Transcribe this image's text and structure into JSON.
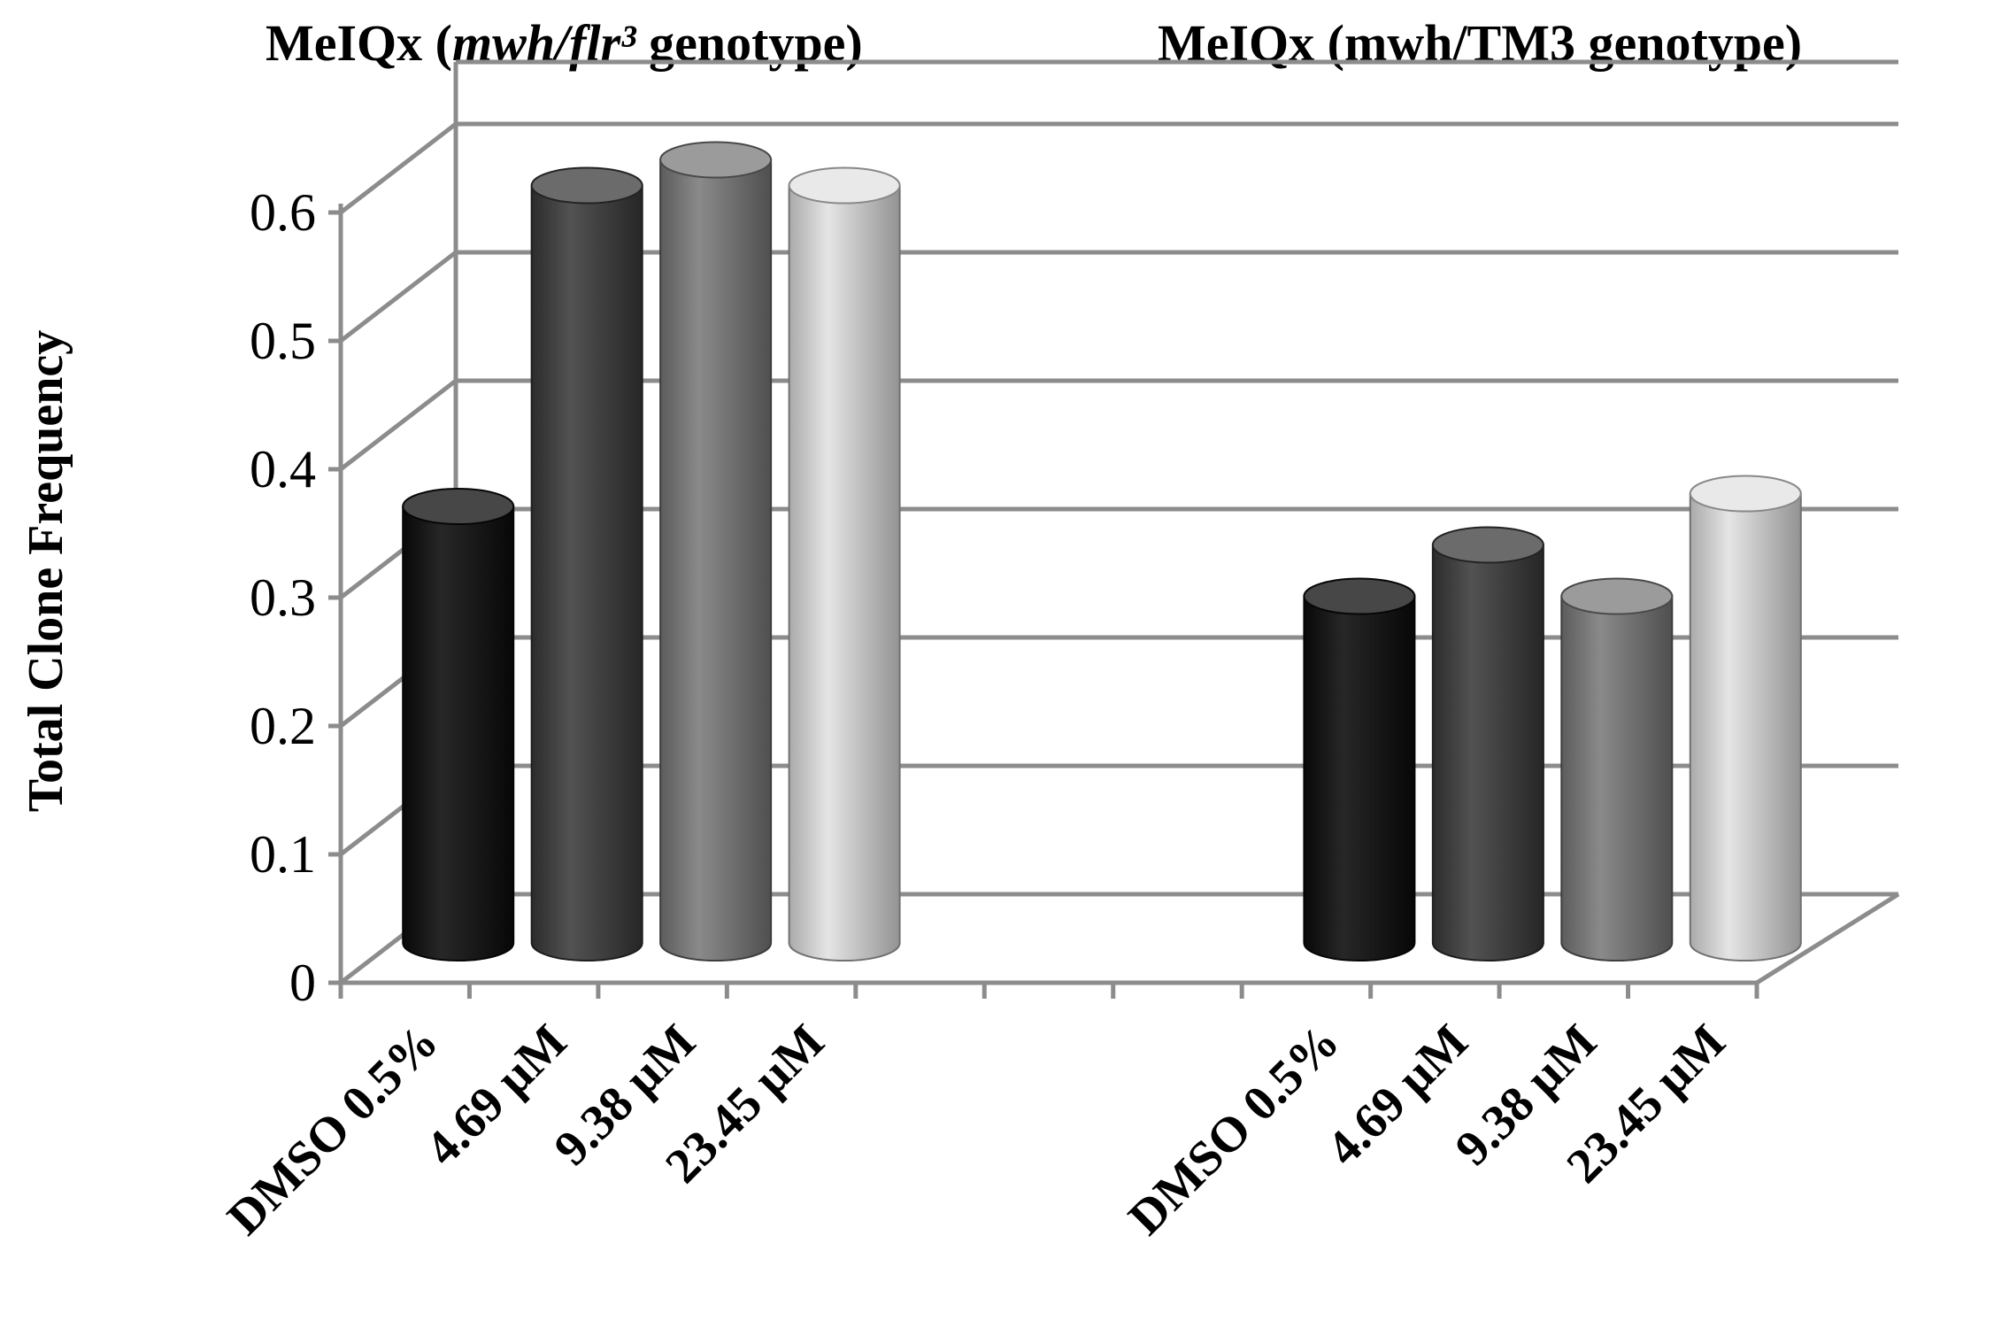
{
  "chart_data": {
    "type": "bar",
    "style": "3d-cylinder",
    "ylabel": "Total Clone Frequency",
    "ylim": [
      0,
      0.6
    ],
    "yticks": [
      "0",
      "0.1",
      "0.2",
      "0.3",
      "0.4",
      "0.5",
      "0.6"
    ],
    "grid": true,
    "groups": [
      {
        "title": {
          "prefix": "MeIQx  (",
          "italic": "mwh/flr³",
          "suffix": " genotype)"
        },
        "categories": [
          "DMSO 0.5%",
          "4.69 µM",
          "9.38 µM",
          "23.45 µM"
        ],
        "values": [
          0.34,
          0.59,
          0.61,
          0.59
        ]
      },
      {
        "title": {
          "prefix": "MeIQx (mwh/TM3 genotype)",
          "italic": "",
          "suffix": ""
        },
        "categories": [
          "DMSO 0.5%",
          "4.69 µM",
          "9.38 µM",
          "23.45 µM"
        ],
        "values": [
          0.27,
          0.31,
          0.27,
          0.35
        ]
      }
    ],
    "series_colors": [
      "#0a0a0a",
      "#3a3a3a",
      "#7a7a7a",
      "#e2e2e2"
    ],
    "grid_color": "#8c8c8c"
  }
}
